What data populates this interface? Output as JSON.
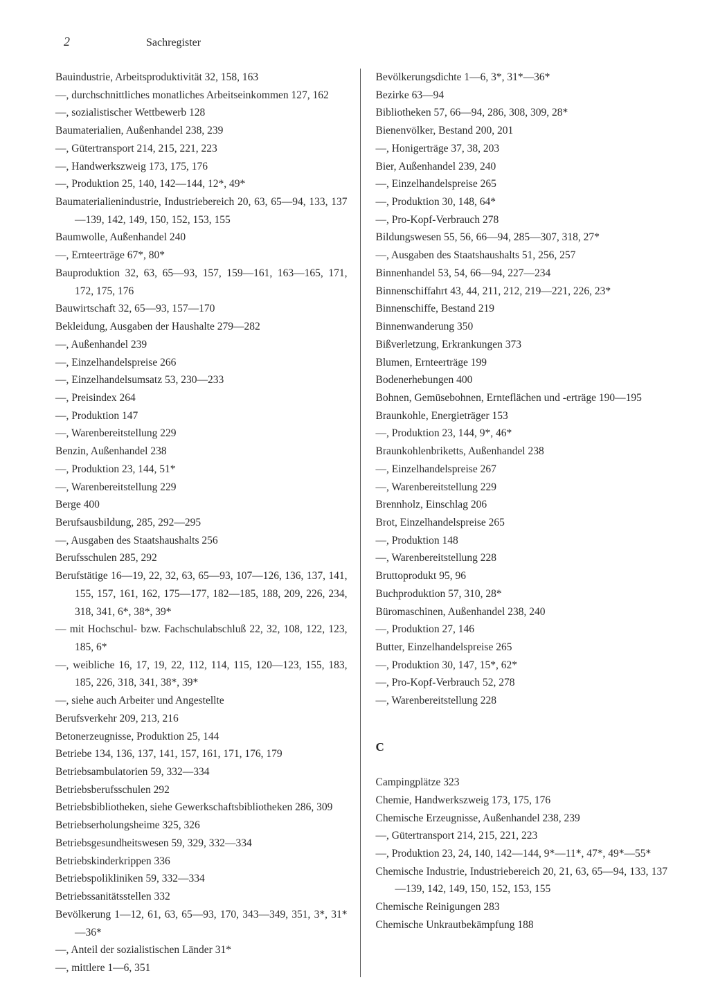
{
  "page_number": "2",
  "section_title": "Sachregister",
  "left_column": [
    "Bauindustrie, Arbeitsproduktivität   32, 158, 163",
    "—, durchschnittliches monatliches Arbeitseinkommen   127, 162",
    "—, sozialistischer Wettbewerb   128",
    "Baumaterialien, Außenhandel   238, 239",
    "—, Gütertransport   214, 215, 221, 223",
    "—, Handwerkszweig   173, 175, 176",
    "—, Produktion   25, 140, 142—144, 12*, 49*",
    "Baumaterialienindustrie, Industriebereich   20, 63, 65—94, 133, 137—139, 142, 149, 150, 152, 153, 155",
    "Baumwolle, Außenhandel   240",
    "—, Ernteerträge   67*, 80*",
    "Bauproduktion   32, 63, 65—93, 157, 159—161, 163—165, 171, 172, 175, 176",
    "Bauwirtschaft   32, 65—93, 157—170",
    "Bekleidung, Ausgaben der Haushalte   279—282",
    "—, Außenhandel   239",
    "—, Einzelhandelspreise   266",
    "—, Einzelhandelsumsatz   53, 230—233",
    "—, Preisindex   264",
    "—, Produktion   147",
    "—, Warenbereitstellung   229",
    "Benzin, Außenhandel   238",
    "—, Produktion   23, 144, 51*",
    "—, Warenbereitstellung   229",
    "Berge   400",
    "Berufsausbildung,   285, 292—295",
    "—, Ausgaben des Staatshaushalts   256",
    "Berufsschulen   285, 292",
    "Berufstätige   16—19, 22, 32, 63, 65—93, 107—126, 136, 137, 141, 155, 157, 161, 162, 175—177, 182—185, 188, 209, 226, 234, 318, 341, 6*, 38*, 39*",
    "— mit Hochschul- bzw. Fachschulabschluß   22, 32, 108, 122, 123, 185, 6*",
    "—, weibliche   16, 17, 19, 22, 112, 114, 115, 120—123, 155, 183, 185, 226, 318, 341, 38*, 39*",
    "—, siehe auch Arbeiter und Angestellte",
    "Berufsverkehr   209, 213, 216",
    "Betonerzeugnisse, Produktion   25, 144",
    "Betriebe   134, 136, 137, 141, 157, 161, 171, 176, 179",
    "Betriebsambulatorien   59, 332—334",
    "Betriebsberufsschulen   292",
    "Betriebsbibliotheken, siehe Gewerkschaftsbibliotheken   286, 309",
    "Betriebserholungsheime   325, 326",
    "Betriebsgesundheitswesen   59, 329, 332—334",
    "Betriebskinderkrippen   336",
    "Betriebspolikliniken   59, 332—334",
    "Betriebssanitätsstellen   332",
    "Bevölkerung   1—12, 61, 63, 65—93, 170, 343—349, 351, 3*, 31*—36*",
    "—, Anteil der sozialistischen Länder   31*",
    "—, mittlere   1—6, 351"
  ],
  "right_column": [
    "Bevölkerungsdichte   1—6, 3*, 31*—36*",
    "Bezirke   63—94",
    "Bibliotheken   57, 66—94, 286, 308, 309, 28*",
    "Bienenvölker, Bestand   200, 201",
    "—, Honigerträge   37, 38, 203",
    "Bier, Außenhandel   239, 240",
    "—, Einzelhandelspreise   265",
    "—, Produktion   30, 148, 64*",
    "—, Pro-Kopf-Verbrauch   278",
    "Bildungswesen   55, 56, 66—94, 285—307, 318, 27*",
    "—, Ausgaben des Staatshaushalts 51, 256, 257",
    "Binnenhandel   53, 54, 66—94, 227—234",
    "Binnenschiffahrt   43, 44, 211, 212, 219—221, 226, 23*",
    "Binnenschiffe, Bestand   219",
    "Binnenwanderung   350",
    "Bißverletzung, Erkrankungen   373",
    "Blumen, Ernteerträge   199",
    "Bodenerhebungen   400",
    "Bohnen, Gemüsebohnen, Ernteflächen und -erträge   190—195",
    "Braunkohle, Energieträger   153",
    "—, Produktion   23, 144, 9*, 46*",
    "Braunkohlenbriketts, Außenhandel   238",
    "—, Einzelhandelspreise   267",
    "—, Warenbereitstellung   229",
    "Brennholz, Einschlag   206",
    "Brot, Einzelhandelspreise   265",
    "—, Produktion   148",
    "—, Warenbereitstellung   228",
    "Bruttoprodukt   95, 96",
    "Buchproduktion   57, 310, 28*",
    "Büromaschinen, Außenhandel   238, 240",
    "—, Produktion   27, 146",
    "Butter, Einzelhandelspreise   265",
    "—, Produktion   30, 147, 15*, 62*",
    "—, Pro-Kopf-Verbrauch   52, 278",
    "—, Warenbereitstellung   228"
  ],
  "section_c_letter": "C",
  "section_c": [
    "Campingplätze   323",
    "Chemie, Handwerkszweig   173, 175, 176",
    "Chemische Erzeugnisse, Außenhandel   238, 239",
    "—, Gütertransport   214, 215, 221, 223",
    "—, Produktion   23, 24, 140, 142—144, 9*—11*, 47*, 49*—55*",
    "Chemische Industrie, Industriebereich   20, 21, 63, 65—94, 133, 137—139, 142, 149, 150, 152, 153, 155",
    "Chemische Reinigungen   283",
    "Chemische Unkrautbekämpfung   188"
  ]
}
